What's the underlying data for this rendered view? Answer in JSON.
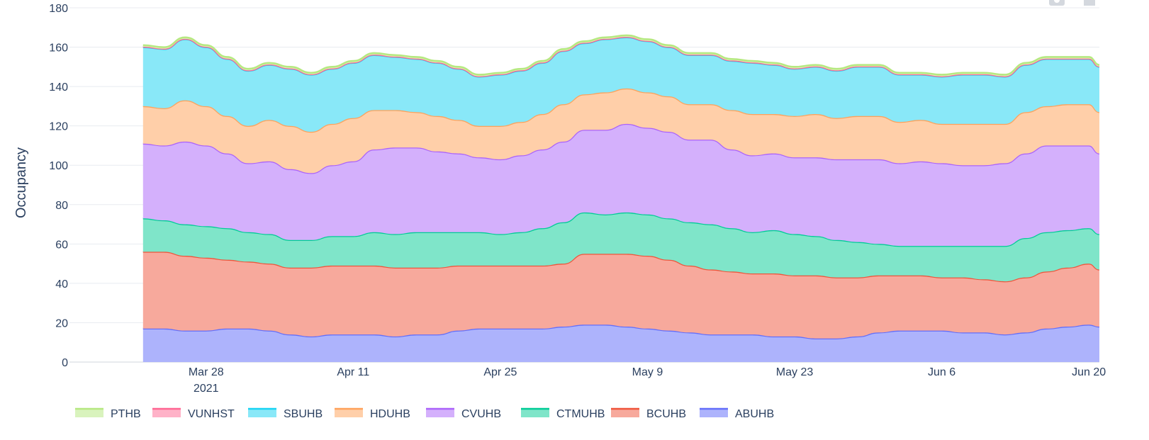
{
  "chart_data": {
    "type": "area",
    "stacked": true,
    "title": "",
    "xlabel": "",
    "ylabel": "Occupancy",
    "ylim": [
      0,
      180
    ],
    "yticks": [
      0,
      20,
      40,
      60,
      80,
      100,
      120,
      140,
      160,
      180
    ],
    "grid": true,
    "legend_position": "bottom",
    "x_start": "2021-03-15",
    "x_end": "2021-06-21",
    "x_ticks": [
      {
        "date": "2021-03-28",
        "label": "Mar 28",
        "sublabel": "2021"
      },
      {
        "date": "2021-04-11",
        "label": "Apr 11",
        "sublabel": ""
      },
      {
        "date": "2021-04-25",
        "label": "Apr 25",
        "sublabel": ""
      },
      {
        "date": "2021-05-09",
        "label": "May 9",
        "sublabel": ""
      },
      {
        "date": "2021-05-23",
        "label": "May 23",
        "sublabel": ""
      },
      {
        "date": "2021-06-06",
        "label": "Jun 6",
        "sublabel": ""
      },
      {
        "date": "2021-06-20",
        "label": "Jun 20",
        "sublabel": ""
      }
    ],
    "x": [
      "2021-03-22",
      "2021-03-24",
      "2021-03-26",
      "2021-03-28",
      "2021-03-30",
      "2021-04-01",
      "2021-04-03",
      "2021-04-05",
      "2021-04-07",
      "2021-04-09",
      "2021-04-11",
      "2021-04-13",
      "2021-04-15",
      "2021-04-17",
      "2021-04-19",
      "2021-04-21",
      "2021-04-23",
      "2021-04-25",
      "2021-04-27",
      "2021-04-29",
      "2021-05-01",
      "2021-05-03",
      "2021-05-05",
      "2021-05-07",
      "2021-05-09",
      "2021-05-11",
      "2021-05-13",
      "2021-05-15",
      "2021-05-17",
      "2021-05-19",
      "2021-05-21",
      "2021-05-23",
      "2021-05-25",
      "2021-05-27",
      "2021-05-29",
      "2021-05-31",
      "2021-06-02",
      "2021-06-04",
      "2021-06-06",
      "2021-06-08",
      "2021-06-10",
      "2021-06-12",
      "2021-06-14",
      "2021-06-16",
      "2021-06-18",
      "2021-06-20",
      "2021-06-21"
    ],
    "series": [
      {
        "name": "ABUHB",
        "color": "#636efa",
        "fill": "#adb3fc",
        "values": [
          17,
          17,
          16,
          16,
          17,
          17,
          16,
          14,
          13,
          14,
          14,
          14,
          13,
          14,
          14,
          16,
          17,
          17,
          17,
          17,
          18,
          19,
          19,
          18,
          17,
          16,
          15,
          14,
          14,
          14,
          13,
          13,
          12,
          12,
          13,
          15,
          16,
          16,
          16,
          15,
          15,
          14,
          15,
          17,
          18,
          19,
          18
        ]
      },
      {
        "name": "BCUHB",
        "color": "#ef553b",
        "fill": "#f7a99c",
        "values": [
          39,
          39,
          38,
          37,
          35,
          34,
          34,
          34,
          35,
          35,
          35,
          35,
          35,
          34,
          34,
          33,
          32,
          32,
          32,
          32,
          32,
          36,
          36,
          37,
          37,
          36,
          34,
          33,
          32,
          31,
          32,
          31,
          32,
          31,
          30,
          29,
          28,
          28,
          27,
          28,
          27,
          27,
          28,
          29,
          30,
          31,
          29
        ]
      },
      {
        "name": "CTMUHB",
        "color": "#00cc96",
        "fill": "#7fe5c9",
        "values": [
          17,
          16,
          16,
          16,
          16,
          15,
          15,
          14,
          14,
          15,
          15,
          17,
          17,
          18,
          18,
          17,
          17,
          16,
          17,
          19,
          21,
          21,
          20,
          21,
          21,
          21,
          22,
          23,
          22,
          21,
          22,
          21,
          20,
          19,
          18,
          16,
          15,
          15,
          16,
          16,
          17,
          18,
          20,
          20,
          19,
          18,
          18
        ]
      },
      {
        "name": "CVUHB",
        "color": "#ab63fa",
        "fill": "#d4b0fc",
        "values": [
          38,
          38,
          42,
          41,
          38,
          35,
          37,
          36,
          34,
          36,
          38,
          42,
          44,
          43,
          41,
          40,
          38,
          38,
          39,
          40,
          41,
          42,
          43,
          45,
          44,
          44,
          42,
          43,
          40,
          39,
          39,
          39,
          40,
          41,
          42,
          43,
          42,
          43,
          42,
          41,
          41,
          42,
          43,
          44,
          43,
          42,
          41
        ]
      },
      {
        "name": "HDUHB",
        "color": "#ffa15a",
        "fill": "#ffcfa9",
        "values": [
          19,
          19,
          21,
          20,
          19,
          19,
          21,
          22,
          21,
          21,
          22,
          20,
          19,
          18,
          18,
          17,
          16,
          17,
          17,
          18,
          19,
          18,
          19,
          18,
          18,
          18,
          18,
          18,
          20,
          21,
          20,
          21,
          22,
          21,
          22,
          22,
          21,
          21,
          20,
          21,
          21,
          20,
          21,
          20,
          21,
          21,
          21
        ]
      },
      {
        "name": "SBUHB",
        "color": "#19d3f3",
        "fill": "#89e8f8",
        "values": [
          30,
          30,
          31,
          30,
          29,
          28,
          28,
          29,
          29,
          28,
          28,
          28,
          27,
          27,
          27,
          26,
          25,
          26,
          26,
          26,
          27,
          26,
          27,
          26,
          26,
          25,
          25,
          25,
          25,
          26,
          25,
          24,
          24,
          24,
          25,
          25,
          24,
          23,
          24,
          25,
          25,
          24,
          24,
          24,
          23,
          23,
          23
        ]
      },
      {
        "name": "VUNHST",
        "color": "#ff6692",
        "fill": "#ffb2c8",
        "values": [
          0.2,
          0.2,
          0.2,
          0.2,
          0.2,
          0.2,
          0.2,
          0.2,
          0.2,
          0.2,
          0.2,
          0.2,
          0.2,
          0.2,
          0.2,
          0.2,
          0.2,
          0.2,
          0.2,
          0.2,
          0.2,
          0.2,
          0.2,
          0.2,
          0.2,
          0.2,
          0.2,
          0.2,
          0.2,
          0.2,
          0.2,
          0.2,
          0.2,
          0.2,
          0.2,
          0.2,
          0.2,
          0.2,
          0.2,
          0.2,
          0.2,
          0.2,
          0.2,
          0.2,
          0.2,
          0.2,
          0.2
        ]
      },
      {
        "name": "PTHB",
        "color": "#b6e880",
        "fill": "#d9f3bd",
        "values": [
          0.8,
          0.8,
          0.8,
          0.8,
          0.8,
          0.8,
          0.8,
          0.8,
          0.8,
          0.8,
          0.8,
          0.8,
          0.8,
          0.8,
          0.8,
          0.8,
          0.8,
          0.8,
          0.8,
          0.8,
          0.8,
          0.8,
          0.8,
          0.8,
          0.8,
          0.8,
          0.8,
          0.8,
          0.8,
          0.8,
          0.8,
          0.8,
          0.8,
          0.8,
          0.8,
          0.8,
          0.8,
          0.8,
          0.8,
          0.8,
          0.8,
          0.8,
          0.8,
          0.8,
          0.8,
          0.8,
          0.8
        ]
      }
    ],
    "legend_order": [
      "PTHB",
      "VUNHST",
      "SBUHB",
      "HDUHB",
      "CVUHB",
      "CTMUHB",
      "BCUHB",
      "ABUHB"
    ]
  },
  "modebar": {
    "camera_icon": "camera-icon",
    "home_icon": "home-icon"
  }
}
